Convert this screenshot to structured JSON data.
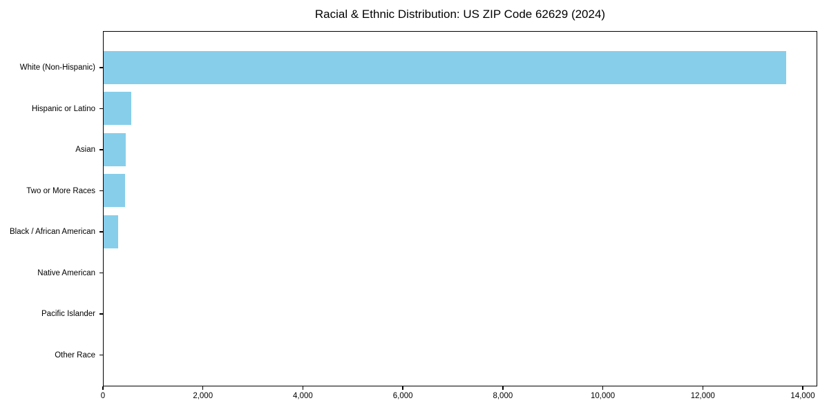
{
  "title": "Racial & Ethnic Distribution: US ZIP Code 62629 (2024)",
  "colors": {
    "bar": "#87CEEB",
    "axis": "#000000",
    "background": "#ffffff"
  },
  "chart_data": {
    "type": "bar",
    "orientation": "horizontal",
    "title": "Racial & Ethnic Distribution: US ZIP Code 62629 (2024)",
    "xlabel": "",
    "ylabel": "",
    "categories": [
      "White (Non-Hispanic)",
      "Hispanic or Latino",
      "Asian",
      "Two or More Races",
      "Black / African American",
      "Native American",
      "Pacific Islander",
      "Other Race"
    ],
    "values": [
      13650,
      555,
      440,
      430,
      290,
      0,
      0,
      0
    ],
    "xlim": [
      0,
      14290
    ],
    "x_ticks": [
      0,
      2000,
      4000,
      6000,
      8000,
      10000,
      12000,
      14000
    ],
    "x_tick_labels": [
      "0",
      "2,000",
      "4,000",
      "6,000",
      "8,000",
      "10,000",
      "12,000",
      "14,000"
    ],
    "bar_color": "#87CEEB",
    "grid": false,
    "legend": "none"
  }
}
